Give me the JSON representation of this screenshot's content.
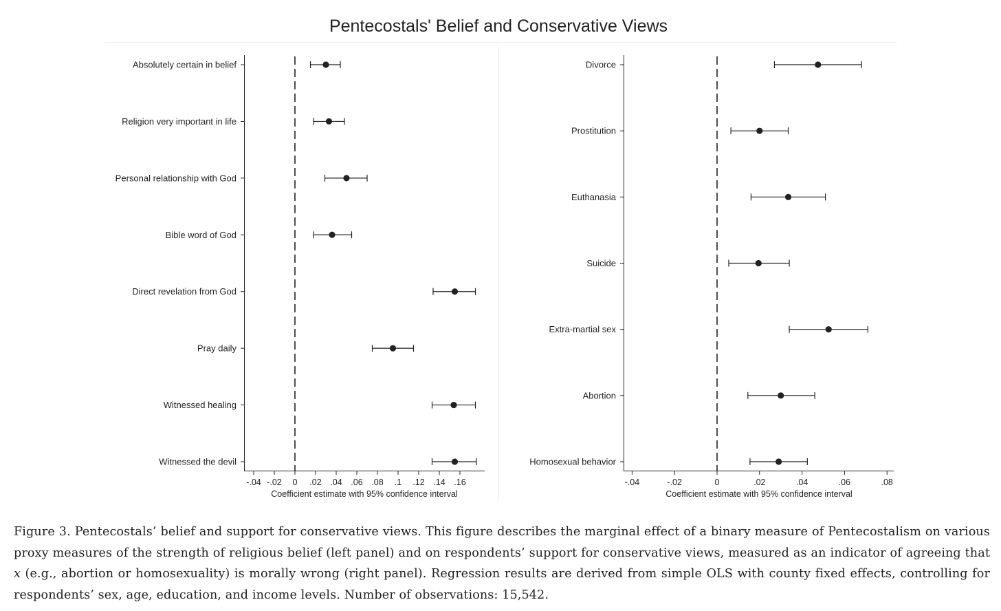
{
  "chart_data": {
    "title": "Pentecostals' Belief and Conservative Views",
    "panels": [
      {
        "type": "scatter",
        "subtype": "coefficient-plot",
        "xlabel": "Coefficient estimate with 95% confidence interval",
        "xlim": [
          -0.05,
          0.185
        ],
        "xticks": [
          -0.04,
          -0.02,
          0,
          0.02,
          0.04,
          0.06,
          0.08,
          0.1,
          0.12,
          0.14,
          0.16
        ],
        "xtick_labels": [
          "-.04",
          "-.02",
          "0",
          ".02",
          ".04",
          ".06",
          ".08",
          ".1",
          ".12",
          ".14",
          ".16"
        ],
        "reference_line": 0,
        "categories": [
          "Absolutely certain in belief",
          "Religion very important in life",
          "Personal relationship with God",
          "Bible word of God",
          "Direct revelation from God",
          "Pray daily",
          "Witnessed healing",
          "Witnessed the devil"
        ],
        "estimates": [
          0.03,
          0.033,
          0.05,
          0.036,
          0.155,
          0.095,
          0.154,
          0.155
        ],
        "ci_low": [
          0.015,
          0.018,
          0.029,
          0.018,
          0.134,
          0.075,
          0.133,
          0.133
        ],
        "ci_high": [
          0.044,
          0.048,
          0.07,
          0.055,
          0.175,
          0.115,
          0.175,
          0.176
        ]
      },
      {
        "type": "scatter",
        "subtype": "coefficient-plot",
        "xlabel": "Coefficient estimate with 95% confidence interval",
        "xlim": [
          -0.043,
          0.083
        ],
        "xticks": [
          -0.04,
          -0.02,
          0,
          0.02,
          0.04,
          0.06,
          0.08
        ],
        "xtick_labels": [
          "-.04",
          "-.02",
          "0",
          ".02",
          ".04",
          ".06",
          ".08"
        ],
        "reference_line": 0,
        "categories": [
          "Divorce",
          "Prostitution",
          "Euthanasia",
          "Suicide",
          "Extra-martial sex",
          "Abortion",
          "Homosexual behavior"
        ],
        "estimates": [
          0.0475,
          0.02,
          0.0335,
          0.0195,
          0.0525,
          0.03,
          0.029
        ],
        "ci_low": [
          0.027,
          0.0065,
          0.016,
          0.0055,
          0.034,
          0.0145,
          0.0155
        ],
        "ci_high": [
          0.068,
          0.0335,
          0.051,
          0.034,
          0.071,
          0.046,
          0.0425
        ]
      }
    ]
  },
  "caption": {
    "lead": "Figure 3. Pentecostals’ belief and support for conservative views. This figure describes the marginal effect of a binary measure of Pentecostalism on various proxy measures of the strength of religious belief (left panel) and on respondents’ support for conservative views, measured as an indicator of agreeing that ",
    "var": "x",
    "rest": " (e.g., abortion or homosexuality) is morally wrong (right panel). Regression results are derived from simple OLS with county fixed effects, controlling for respondents’ sex, age, education, and income levels. Number of observations: 15,542."
  }
}
